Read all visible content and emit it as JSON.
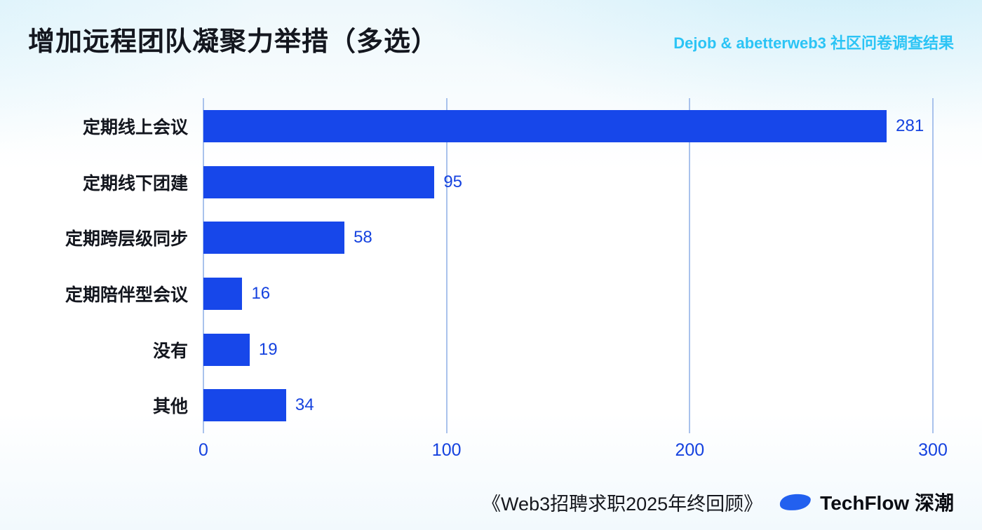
{
  "header": {
    "title": "增加远程团队凝聚力举措（多选）",
    "subtitle": "Dejob & abetterweb3 社区问卷调查结果"
  },
  "chart_data": {
    "type": "bar",
    "orientation": "horizontal",
    "title": "增加远程团队凝聚力举措（多选）",
    "categories": [
      "定期线上会议",
      "定期线下团建",
      "定期跨层级同步",
      "定期陪伴型会议",
      "没有",
      "其他"
    ],
    "values": [
      281,
      95,
      58,
      16,
      19,
      34
    ],
    "x_ticks": [
      0,
      100,
      200,
      300
    ],
    "xlim": [
      0,
      300
    ],
    "grid": true,
    "legend": false,
    "value_labels": true
  },
  "footer": {
    "source": "《Web3招聘求职2025年终回顾》",
    "brand": "TechFlow 深潮"
  },
  "colors": {
    "bar": "#1747ea",
    "value_label": "#1542df",
    "tick_label": "#1542df",
    "gridline": "#a9c2ec",
    "title": "#14171f",
    "subtitle": "#2bc4f5",
    "logo": "#2260ef"
  }
}
